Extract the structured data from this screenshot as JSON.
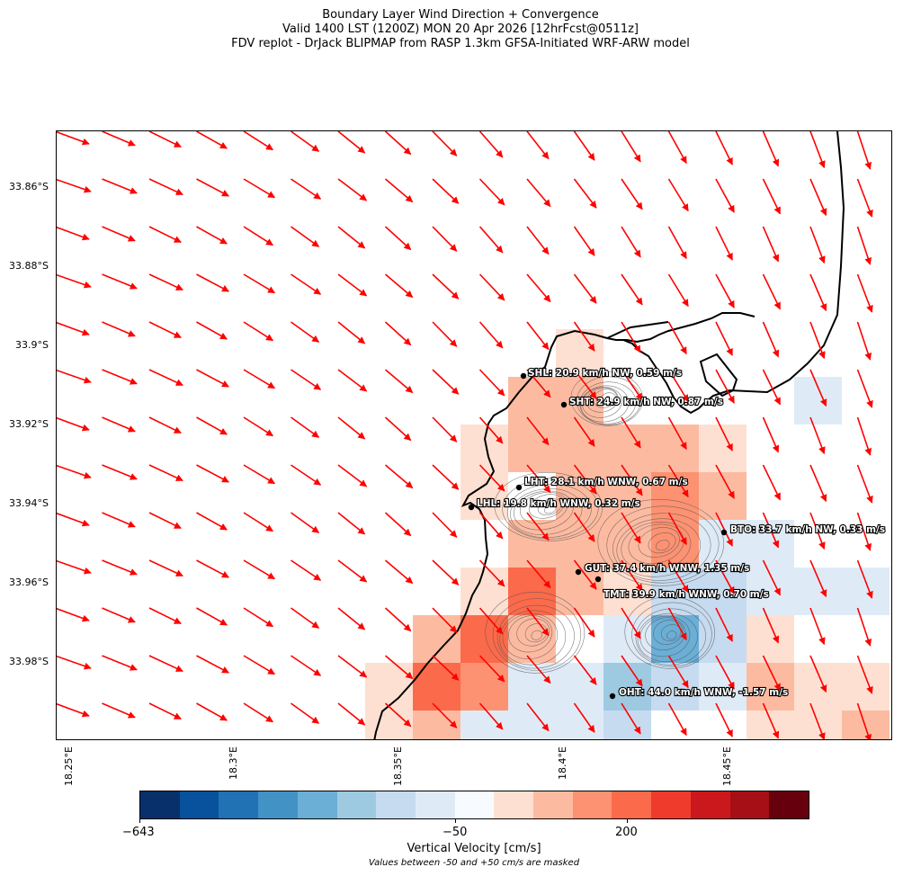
{
  "title": {
    "line1": "Boundary Layer Wind Direction + Convergence",
    "line2": "Valid 1400 LST (1200Z) MON 20 Apr 2026 [12hrFcst@0511z]",
    "line3": "FDV replot - DrJack BLIPMAP from RASP 1.3km GFSA-Initiated WRF-ARW model"
  },
  "axes": {
    "lat_labels": [
      "33.86°S",
      "33.88°S",
      "33.9°S",
      "33.92°S",
      "33.94°S",
      "33.96°S",
      "33.98°S"
    ],
    "lon_labels": [
      "18.25°E",
      "18.3°E",
      "18.35°E",
      "18.4°E",
      "18.45°E"
    ]
  },
  "stations": [
    {
      "code": "SHL",
      "text": "SHL: 20.9 km/h NW, 0.59 m/s"
    },
    {
      "code": "SHT",
      "text": "SHT: 24.9 km/h NW, 0.87 m/s"
    },
    {
      "code": "LHT",
      "text": "LHT: 28.1 km/h WNW, 0.67 m/s"
    },
    {
      "code": "LHL",
      "text": "LHL: 19.8 km/h WNW, 0.32 m/s"
    },
    {
      "code": "BTO",
      "text": "BTO: 33.7 km/h NW, 0.33 m/s"
    },
    {
      "code": "GUT",
      "text": "GUT: 37.4 km/h WNW, 1.35 m/s"
    },
    {
      "code": "TMT",
      "text": "TMT: 39.9 km/h WNW, 0.70 m/s"
    },
    {
      "code": "OHT",
      "text": "OHT: 44.0 km/h WNW, -1.57 m/s"
    }
  ],
  "colorbar": {
    "label": "Vertical Velocity [cm/s]",
    "note": "Values between -50 and +50 cm/s are masked",
    "tick_min": "−643",
    "tick_mid": "−50",
    "tick_high": "200",
    "colors": [
      "#08306b",
      "#08519c",
      "#2171b5",
      "#4292c6",
      "#6baed6",
      "#9ecae1",
      "#c6dbef",
      "#deebf7",
      "#f7fbff",
      "#fee0d2",
      "#fcbba1",
      "#fc9272",
      "#fb6a4a",
      "#ef3b2c",
      "#cb181d",
      "#a50f15",
      "#67000d"
    ]
  },
  "colors": {
    "wind_arrow": "#ff0000",
    "coastline": "#000000",
    "contour": "#555555"
  }
}
